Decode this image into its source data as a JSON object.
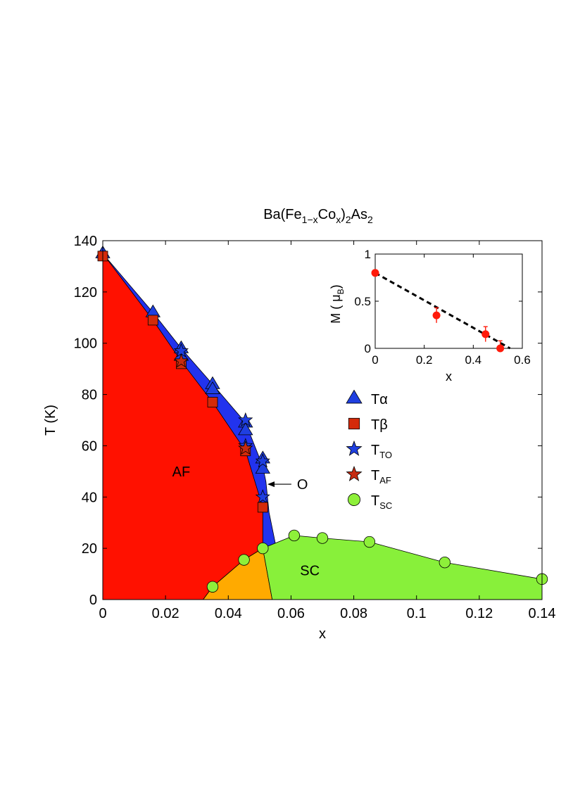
{
  "chart_data": [
    {
      "type": "scatter",
      "title_main": "Ba(Fe",
      "title_sub1": "1−x",
      "title_mid": "Co",
      "title_sub2": "x",
      "title_close": ")",
      "title_sub3": "2",
      "title_end": "As",
      "title_sub4": "2",
      "xlabel": "x",
      "ylabel": "T (K)",
      "xlim": [
        0,
        0.14
      ],
      "ylim": [
        0,
        140
      ],
      "xticks": [
        0,
        0.02,
        0.04,
        0.06,
        0.08,
        0.1,
        0.12,
        0.14
      ],
      "xtick_labels": [
        "0",
        "0.02",
        "0.04",
        "0.06",
        "0.08",
        "0.1",
        "0.12",
        "0.14"
      ],
      "yticks": [
        0,
        20,
        40,
        60,
        80,
        100,
        120,
        140
      ],
      "ytick_labels": [
        "0",
        "20",
        "40",
        "60",
        "80",
        "100",
        "120",
        "140"
      ],
      "regions": {
        "blue_boundary": [
          [
            0,
            135
          ],
          [
            0.016,
            112
          ],
          [
            0.025,
            98
          ],
          [
            0.035,
            84
          ],
          [
            0.0455,
            69
          ],
          [
            0.051,
            52
          ],
          [
            0.052,
            46
          ],
          [
            0.0525,
            40
          ],
          [
            0.053,
            34
          ],
          [
            0.0545,
            25
          ],
          [
            0.055,
            22
          ],
          [
            0.0535,
            21
          ],
          [
            0.051,
            20
          ]
        ],
        "red_boundary": [
          [
            0,
            135
          ],
          [
            0.016,
            109
          ],
          [
            0.025,
            93
          ],
          [
            0.035,
            77
          ],
          [
            0.0455,
            58
          ],
          [
            0.051,
            36
          ],
          [
            0.051,
            20
          ],
          [
            0.045,
            15.5
          ],
          [
            0.035,
            5
          ],
          [
            0.032,
            0
          ],
          [
            0,
            0
          ]
        ],
        "orange_boundary": [
          [
            0.032,
            0
          ],
          [
            0.035,
            5
          ],
          [
            0.045,
            15.5
          ],
          [
            0.051,
            20
          ],
          [
            0.054,
            0
          ]
        ],
        "green_boundary": [
          [
            0.051,
            20
          ],
          [
            0.061,
            25
          ],
          [
            0.07,
            24
          ],
          [
            0.085,
            22.5
          ],
          [
            0.109,
            14.5
          ],
          [
            0.14,
            8
          ],
          [
            0.14,
            0
          ],
          [
            0.054,
            0
          ]
        ]
      },
      "region_labels": [
        {
          "text": "AF",
          "x": 0.025,
          "y": 48
        },
        {
          "text": "SC",
          "x": 0.066,
          "y": 9.5
        }
      ],
      "annotation": {
        "text": "O",
        "arrow_from": [
          0.061,
          45
        ],
        "arrow_to": [
          0.0525,
          45
        ]
      },
      "series": [
        {
          "name": "T",
          "subscript": "α",
          "marker": "triangle",
          "color": "#1f3fe0",
          "x": [
            0,
            0.016,
            0.025,
            0.025,
            0.035,
            0.035,
            0.0455,
            0.0455,
            0.051,
            0.051
          ],
          "y": [
            135,
            112,
            98,
            95,
            84,
            82,
            69,
            66,
            55,
            51
          ]
        },
        {
          "name": "T",
          "subscript": "β",
          "marker": "square",
          "color": "#d42a0a",
          "x": [
            0,
            0.016,
            0.025,
            0.035,
            0.0455,
            0.051
          ],
          "y": [
            134,
            109,
            92,
            77,
            58,
            36
          ]
        },
        {
          "name": "T",
          "subscript": "TO",
          "marker": "star",
          "color": "#1f3fe0",
          "x": [
            0.025,
            0.0455,
            0.0455,
            0.051,
            0.051
          ],
          "y": [
            97,
            70,
            60,
            54,
            40
          ]
        },
        {
          "name": "T",
          "subscript": "AF",
          "marker": "star",
          "color": "#c62a10",
          "x": [
            0.025,
            0.0455
          ],
          "y": [
            93,
            59
          ]
        },
        {
          "name": "T",
          "subscript": "SC",
          "marker": "circle",
          "color": "#8ef03a",
          "x": [
            0.035,
            0.045,
            0.051,
            0.061,
            0.07,
            0.085,
            0.109,
            0.14
          ],
          "y": [
            5,
            15.5,
            20,
            25,
            24,
            22.5,
            14.5,
            8
          ]
        }
      ],
      "legend_position": "right-middle",
      "colors": {
        "af": "#ff1100",
        "blue": "#2233ee",
        "orange": "#ffaa00",
        "sc": "#88f03a"
      }
    },
    {
      "type": "scatter",
      "xlabel": "x",
      "ylabel_main": "M  ( μ",
      "ylabel_sub": "B",
      "ylabel_close": ")",
      "xlim": [
        0,
        0.6
      ],
      "ylim": [
        0,
        1
      ],
      "xticks": [
        0,
        0.2,
        0.4,
        0.6
      ],
      "xtick_labels": [
        "0",
        "0.2",
        "0.4",
        "0.6"
      ],
      "yticks": [
        0,
        0.5,
        1
      ],
      "ytick_labels": [
        "0",
        "0.5",
        "1"
      ],
      "points": {
        "x": [
          0,
          0.25,
          0.45,
          0.51
        ],
        "y": [
          0.8,
          0.35,
          0.15,
          0.0
        ],
        "err": [
          0,
          0.08,
          0.08,
          0.08
        ]
      },
      "fit_line": {
        "x": [
          0,
          0.55
        ],
        "y": [
          0.8,
          0.0
        ],
        "style": "dashed"
      },
      "colors": {
        "points": "#ff1a0a",
        "line": "#000000"
      }
    }
  ]
}
